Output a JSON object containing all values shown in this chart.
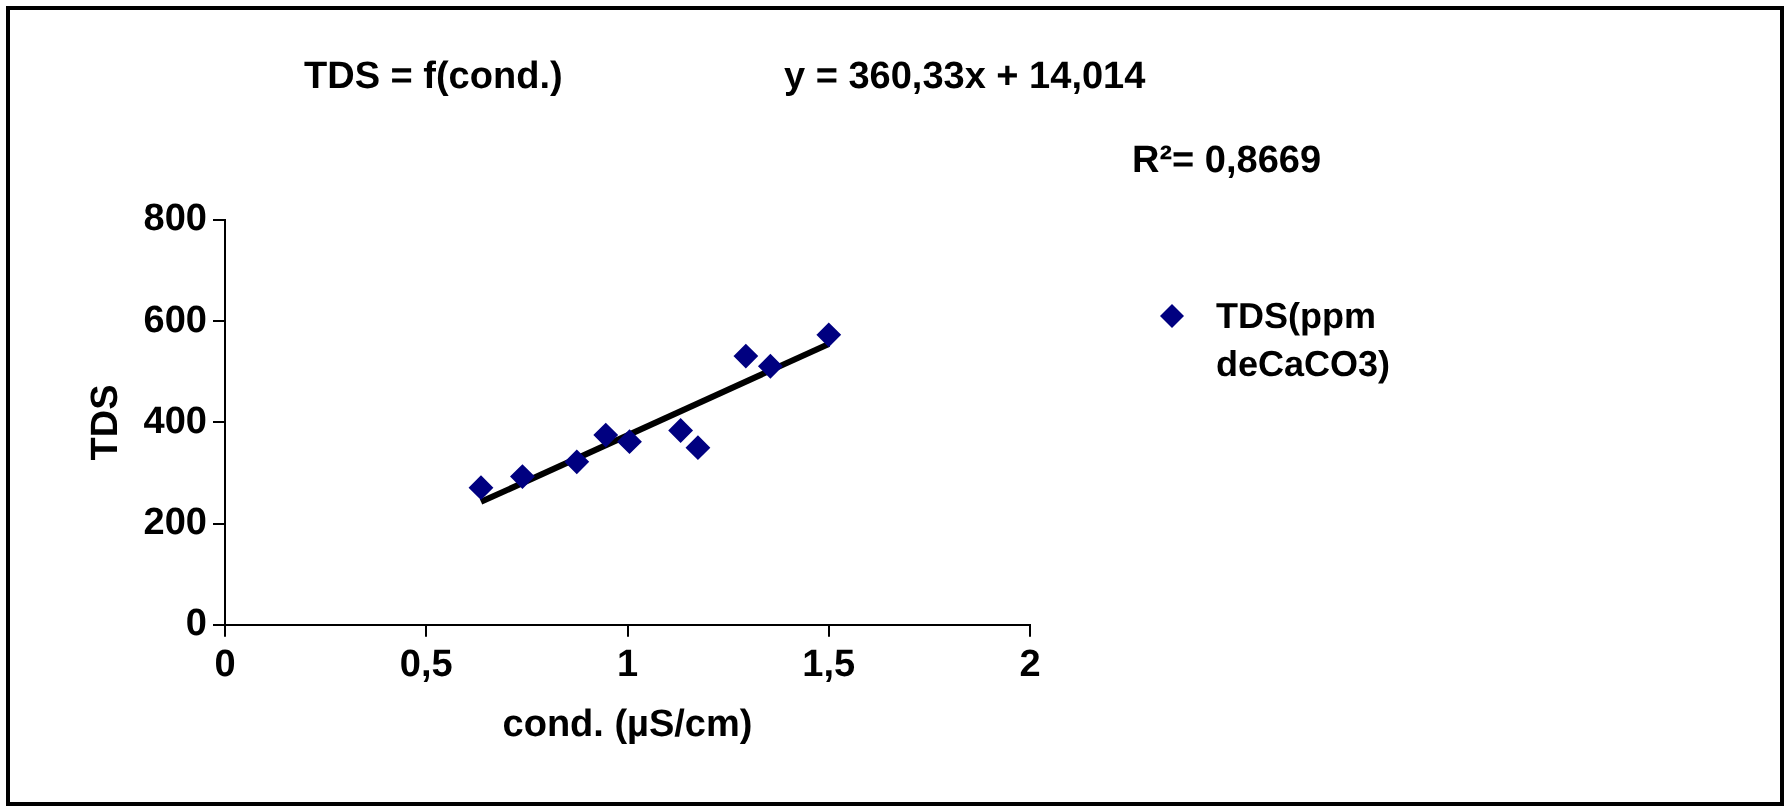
{
  "chart_data": {
    "type": "scatter",
    "title": "TDS = f(cond.)",
    "xlabel": "cond. (µS/cm)",
    "ylabel": "TDS",
    "annotations": [
      "y = 360,33x + 14,014",
      "R²= 0,8669"
    ],
    "series": [
      {
        "name": "TDS(ppm deCaCO3)",
        "color": "#000080",
        "marker": "diamond",
        "x": [
          0.636,
          0.739,
          0.874,
          0.946,
          1.005,
          1.132,
          1.175,
          1.294,
          1.355,
          1.5
        ],
        "values": [
          271,
          293,
          322,
          375,
          362,
          384,
          350,
          531,
          511,
          573
        ]
      },
      {
        "type": "line",
        "color": "#000000",
        "marker": "none",
        "x": [
          0.636,
          1.5
        ],
        "values": [
          243,
          555
        ]
      }
    ],
    "xlim": [
      0,
      2
    ],
    "xticks": [
      0,
      {
        "value": 0.5,
        "label": "0,5"
      },
      1,
      {
        "value": 1.5,
        "label": "1,5"
      },
      2
    ],
    "ylim": [
      0,
      800
    ],
    "yticks": [
      0,
      200,
      400,
      600,
      800
    ],
    "grid": false,
    "legend": "right"
  }
}
